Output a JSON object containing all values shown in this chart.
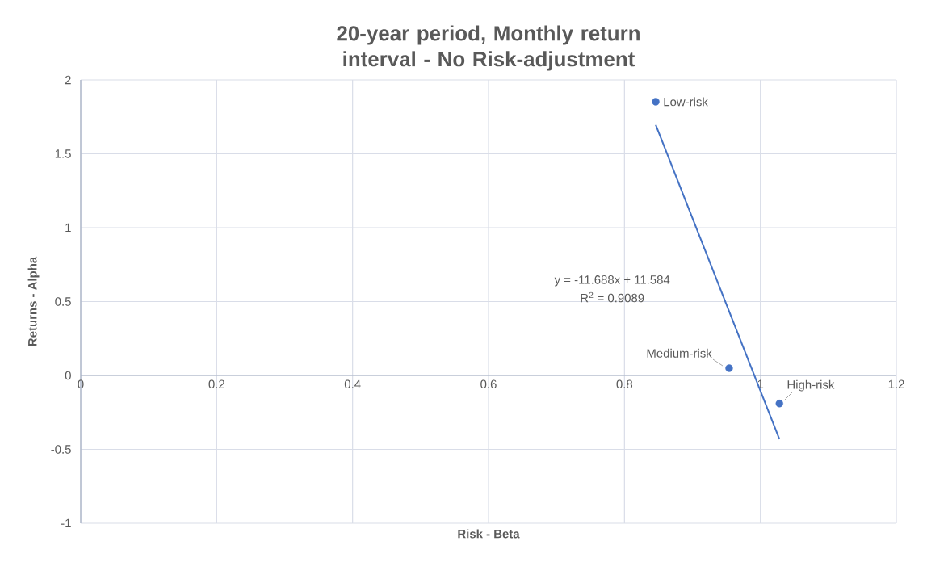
{
  "chart_data": {
    "type": "scatter",
    "title": "20-year period, Monthly return interval - No Risk-adjustment",
    "xlabel": "Risk - Beta",
    "ylabel": "Returns - Alpha",
    "xlim": [
      0,
      1.2
    ],
    "xticks": [
      0,
      0.2,
      0.4,
      0.6,
      0.8,
      1,
      1.2
    ],
    "ylim": [
      -1,
      2
    ],
    "yticks": [
      -1,
      -0.5,
      0,
      0.5,
      1,
      1.5,
      2
    ],
    "grid": true,
    "legend": false,
    "marker": "circle",
    "series": [
      {
        "color": "#4472c4",
        "x": [
          0.846,
          0.954,
          1.028
        ],
        "values": [
          1.853,
          0.049,
          -0.19
        ]
      },
      {
        "type": "line",
        "color": "#4472c4",
        "line_style": "solid",
        "marker": "none",
        "x": [
          0.846,
          1.028
        ],
        "values": [
          1.696,
          -0.431
        ]
      }
    ],
    "annotations": [
      {
        "text": "Low-risk",
        "x": 0.846,
        "y": 1.853
      },
      {
        "text": "Medium-risk",
        "x": 0.954,
        "y": 0.049
      },
      {
        "text": "High-risk",
        "x": 1.028,
        "y": -0.19
      },
      "y = -11.688x + 11.584",
      "R$^{2}$ = 0.9089"
    ]
  }
}
